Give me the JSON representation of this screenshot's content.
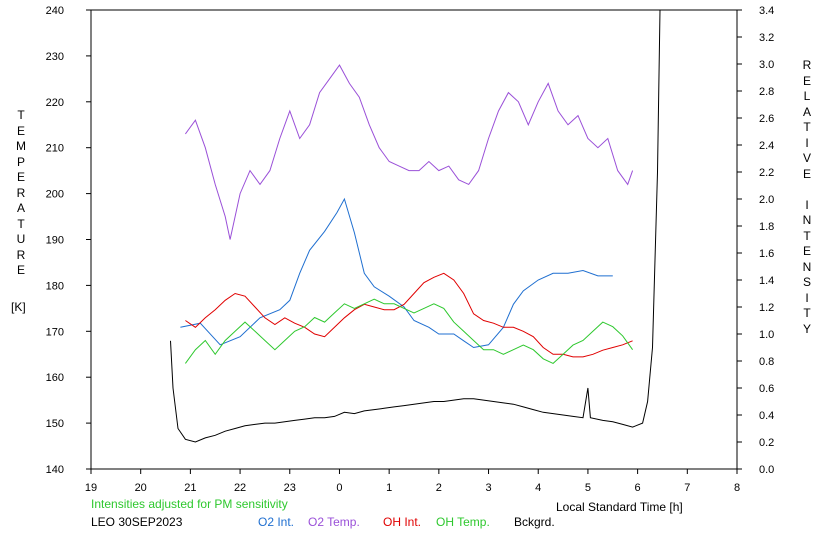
{
  "chart_data": {
    "type": "line",
    "xlabel": "Local Standard Time [h]",
    "ylabel_left": "TEMPERATURE",
    "ylabel_left_unit": "[K]",
    "ylabel_right": "RELATIVE INTENSITY",
    "x_tick_labels": [
      "19",
      "20",
      "21",
      "22",
      "23",
      "0",
      "1",
      "2",
      "3",
      "4",
      "5",
      "6",
      "7",
      "8"
    ],
    "x_tick_values": [
      19,
      20,
      21,
      22,
      23,
      24,
      25,
      26,
      27,
      28,
      29,
      30,
      31,
      32
    ],
    "y_left_ticks": [
      140,
      150,
      160,
      170,
      180,
      190,
      200,
      210,
      220,
      230,
      240
    ],
    "y_right_ticks": [
      "0.0",
      "0.2",
      "0.4",
      "0.6",
      "0.8",
      "1.0",
      "1.2",
      "1.4",
      "1.6",
      "1.8",
      "2.0",
      "2.2",
      "2.4",
      "2.6",
      "2.8",
      "3.0",
      "3.2",
      "3.4"
    ],
    "xlim": [
      19,
      32
    ],
    "ylim_left": [
      140,
      240
    ],
    "ylim_right": [
      0.0,
      3.4
    ],
    "grid": false,
    "series": [
      {
        "name": "O2 Int.",
        "axis": "right",
        "color": "#1f6fd0",
        "points": [
          [
            20.8,
            1.05
          ],
          [
            21.2,
            1.08
          ],
          [
            21.6,
            0.92
          ],
          [
            22.0,
            0.98
          ],
          [
            22.4,
            1.12
          ],
          [
            22.8,
            1.18
          ],
          [
            23.0,
            1.25
          ],
          [
            23.2,
            1.45
          ],
          [
            23.4,
            1.62
          ],
          [
            23.7,
            1.76
          ],
          [
            23.95,
            1.9
          ],
          [
            24.1,
            2.0
          ],
          [
            24.3,
            1.75
          ],
          [
            24.5,
            1.45
          ],
          [
            24.7,
            1.35
          ],
          [
            25.0,
            1.28
          ],
          [
            25.3,
            1.2
          ],
          [
            25.5,
            1.1
          ],
          [
            25.8,
            1.05
          ],
          [
            26.0,
            1.0
          ],
          [
            26.3,
            1.0
          ],
          [
            26.5,
            0.95
          ],
          [
            26.7,
            0.9
          ],
          [
            27.0,
            0.92
          ],
          [
            27.3,
            1.05
          ],
          [
            27.5,
            1.22
          ],
          [
            27.7,
            1.32
          ],
          [
            28.0,
            1.4
          ],
          [
            28.3,
            1.45
          ],
          [
            28.6,
            1.45
          ],
          [
            28.9,
            1.47
          ],
          [
            29.2,
            1.43
          ],
          [
            29.5,
            1.43
          ]
        ]
      },
      {
        "name": "O2 Temp.",
        "axis": "left",
        "color": "#9a50d8",
        "points": [
          [
            20.9,
            213
          ],
          [
            21.1,
            216
          ],
          [
            21.3,
            210
          ],
          [
            21.5,
            202
          ],
          [
            21.7,
            195
          ],
          [
            21.8,
            190
          ],
          [
            22.0,
            200
          ],
          [
            22.2,
            205
          ],
          [
            22.4,
            202
          ],
          [
            22.6,
            205
          ],
          [
            22.8,
            212
          ],
          [
            23.0,
            218
          ],
          [
            23.2,
            212
          ],
          [
            23.4,
            215
          ],
          [
            23.6,
            222
          ],
          [
            23.8,
            225
          ],
          [
            24.0,
            228
          ],
          [
            24.2,
            224
          ],
          [
            24.4,
            221
          ],
          [
            24.6,
            215
          ],
          [
            24.8,
            210
          ],
          [
            25.0,
            207
          ],
          [
            25.2,
            206
          ],
          [
            25.4,
            205
          ],
          [
            25.6,
            205
          ],
          [
            25.8,
            207
          ],
          [
            26.0,
            205
          ],
          [
            26.2,
            206
          ],
          [
            26.4,
            203
          ],
          [
            26.6,
            202
          ],
          [
            26.8,
            205
          ],
          [
            27.0,
            212
          ],
          [
            27.2,
            218
          ],
          [
            27.4,
            222
          ],
          [
            27.6,
            220
          ],
          [
            27.8,
            215
          ],
          [
            28.0,
            220
          ],
          [
            28.2,
            224
          ],
          [
            28.4,
            218
          ],
          [
            28.6,
            215
          ],
          [
            28.8,
            217
          ],
          [
            29.0,
            212
          ],
          [
            29.2,
            210
          ],
          [
            29.4,
            212
          ],
          [
            29.6,
            205
          ],
          [
            29.8,
            202
          ],
          [
            29.9,
            205
          ]
        ]
      },
      {
        "name": "OH Int.",
        "axis": "right",
        "color": "#e00000",
        "points": [
          [
            20.9,
            1.1
          ],
          [
            21.1,
            1.05
          ],
          [
            21.3,
            1.12
          ],
          [
            21.5,
            1.18
          ],
          [
            21.7,
            1.25
          ],
          [
            21.9,
            1.3
          ],
          [
            22.1,
            1.28
          ],
          [
            22.3,
            1.2
          ],
          [
            22.5,
            1.12
          ],
          [
            22.7,
            1.07
          ],
          [
            22.9,
            1.12
          ],
          [
            23.1,
            1.08
          ],
          [
            23.3,
            1.05
          ],
          [
            23.5,
            1.0
          ],
          [
            23.7,
            0.98
          ],
          [
            23.9,
            1.05
          ],
          [
            24.1,
            1.12
          ],
          [
            24.3,
            1.18
          ],
          [
            24.5,
            1.22
          ],
          [
            24.7,
            1.2
          ],
          [
            24.9,
            1.18
          ],
          [
            25.1,
            1.18
          ],
          [
            25.3,
            1.22
          ],
          [
            25.5,
            1.3
          ],
          [
            25.7,
            1.38
          ],
          [
            25.9,
            1.42
          ],
          [
            26.1,
            1.45
          ],
          [
            26.3,
            1.4
          ],
          [
            26.5,
            1.3
          ],
          [
            26.7,
            1.15
          ],
          [
            26.9,
            1.1
          ],
          [
            27.1,
            1.08
          ],
          [
            27.3,
            1.05
          ],
          [
            27.5,
            1.05
          ],
          [
            27.7,
            1.02
          ],
          [
            27.9,
            0.98
          ],
          [
            28.1,
            0.9
          ],
          [
            28.3,
            0.85
          ],
          [
            28.5,
            0.85
          ],
          [
            28.7,
            0.83
          ],
          [
            28.9,
            0.83
          ],
          [
            29.1,
            0.85
          ],
          [
            29.3,
            0.88
          ],
          [
            29.5,
            0.9
          ],
          [
            29.7,
            0.92
          ],
          [
            29.9,
            0.95
          ]
        ]
      },
      {
        "name": "OH Temp.",
        "axis": "left",
        "color": "#2ec82e",
        "points": [
          [
            20.9,
            163
          ],
          [
            21.1,
            166
          ],
          [
            21.3,
            168
          ],
          [
            21.5,
            165
          ],
          [
            21.7,
            168
          ],
          [
            21.9,
            170
          ],
          [
            22.1,
            172
          ],
          [
            22.3,
            170
          ],
          [
            22.5,
            168
          ],
          [
            22.7,
            166
          ],
          [
            22.9,
            168
          ],
          [
            23.1,
            170
          ],
          [
            23.3,
            171
          ],
          [
            23.5,
            173
          ],
          [
            23.7,
            172
          ],
          [
            23.9,
            174
          ],
          [
            24.1,
            176
          ],
          [
            24.3,
            175
          ],
          [
            24.5,
            176
          ],
          [
            24.7,
            177
          ],
          [
            24.9,
            176
          ],
          [
            25.1,
            176
          ],
          [
            25.3,
            175
          ],
          [
            25.5,
            174
          ],
          [
            25.7,
            175
          ],
          [
            25.9,
            176
          ],
          [
            26.1,
            175
          ],
          [
            26.3,
            172
          ],
          [
            26.5,
            170
          ],
          [
            26.7,
            168
          ],
          [
            26.9,
            166
          ],
          [
            27.1,
            166
          ],
          [
            27.3,
            165
          ],
          [
            27.5,
            166
          ],
          [
            27.7,
            167
          ],
          [
            27.9,
            166
          ],
          [
            28.1,
            164
          ],
          [
            28.3,
            163
          ],
          [
            28.5,
            165
          ],
          [
            28.7,
            167
          ],
          [
            28.9,
            168
          ],
          [
            29.1,
            170
          ],
          [
            29.3,
            172
          ],
          [
            29.5,
            171
          ],
          [
            29.7,
            169
          ],
          [
            29.9,
            166
          ]
        ]
      },
      {
        "name": "Bckgrd.",
        "axis": "right",
        "color": "#000000",
        "points": [
          [
            20.6,
            0.95
          ],
          [
            20.65,
            0.6
          ],
          [
            20.75,
            0.3
          ],
          [
            20.9,
            0.22
          ],
          [
            21.1,
            0.2
          ],
          [
            21.3,
            0.23
          ],
          [
            21.5,
            0.25
          ],
          [
            21.7,
            0.28
          ],
          [
            21.9,
            0.3
          ],
          [
            22.1,
            0.32
          ],
          [
            22.3,
            0.33
          ],
          [
            22.5,
            0.34
          ],
          [
            22.7,
            0.34
          ],
          [
            22.9,
            0.35
          ],
          [
            23.1,
            0.36
          ],
          [
            23.3,
            0.37
          ],
          [
            23.5,
            0.38
          ],
          [
            23.7,
            0.38
          ],
          [
            23.9,
            0.39
          ],
          [
            24.1,
            0.42
          ],
          [
            24.3,
            0.41
          ],
          [
            24.5,
            0.43
          ],
          [
            24.7,
            0.44
          ],
          [
            24.9,
            0.45
          ],
          [
            25.1,
            0.46
          ],
          [
            25.3,
            0.47
          ],
          [
            25.5,
            0.48
          ],
          [
            25.7,
            0.49
          ],
          [
            25.9,
            0.5
          ],
          [
            26.1,
            0.5
          ],
          [
            26.3,
            0.51
          ],
          [
            26.5,
            0.52
          ],
          [
            26.7,
            0.52
          ],
          [
            26.9,
            0.51
          ],
          [
            27.1,
            0.5
          ],
          [
            27.3,
            0.49
          ],
          [
            27.5,
            0.48
          ],
          [
            27.7,
            0.46
          ],
          [
            27.9,
            0.44
          ],
          [
            28.1,
            0.42
          ],
          [
            28.3,
            0.41
          ],
          [
            28.5,
            0.4
          ],
          [
            28.7,
            0.39
          ],
          [
            28.9,
            0.38
          ],
          [
            29.0,
            0.6
          ],
          [
            29.05,
            0.38
          ],
          [
            29.3,
            0.36
          ],
          [
            29.5,
            0.35
          ],
          [
            29.7,
            0.33
          ],
          [
            29.9,
            0.31
          ],
          [
            30.1,
            0.34
          ],
          [
            30.2,
            0.5
          ],
          [
            30.3,
            0.9
          ],
          [
            30.4,
            2.2
          ],
          [
            30.45,
            3.4
          ]
        ]
      }
    ]
  },
  "annotations": {
    "pm_note": "Intensities adjusted for PM sensitivity",
    "station": "LEO 30SEP2023"
  },
  "legend": [
    {
      "label": "O2 Int.",
      "color": "#1f6fd0"
    },
    {
      "label": "O2 Temp.",
      "color": "#9a50d8"
    },
    {
      "label": "OH Int.",
      "color": "#e00000"
    },
    {
      "label": "OH Temp.",
      "color": "#2ec82e"
    },
    {
      "label": "Bckgrd.",
      "color": "#000000"
    }
  ],
  "colors": {
    "pm_note": "#2ec82e",
    "axis": "#000000"
  }
}
